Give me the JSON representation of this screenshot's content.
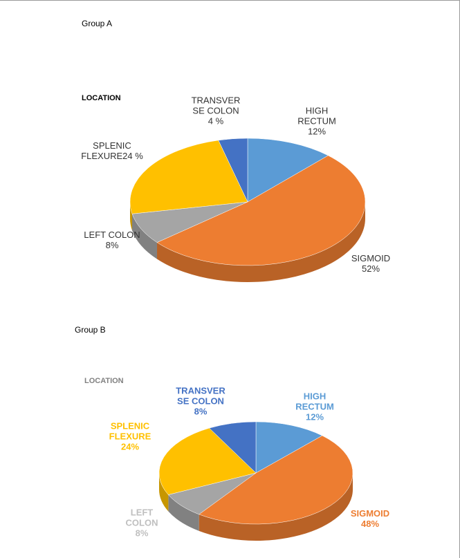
{
  "chart_data": [
    {
      "type": "pie",
      "group": "Group A",
      "title": "LOCATION",
      "categories": [
        "HIGH RECTUM",
        "SIGMOID",
        "LEFT COLON",
        "SPLENIC FLEXURE",
        "TRANSVER SE COLON"
      ],
      "values": [
        12,
        52,
        8,
        24,
        4
      ],
      "value_labels": [
        "12%",
        "52%",
        "8%",
        "24 %",
        "4 %"
      ],
      "colors": [
        "#5b9bd5",
        "#ed7d31",
        "#a5a5a5",
        "#ffc000",
        "#4472c4"
      ]
    },
    {
      "type": "pie",
      "group": "Group B",
      "title": "LOCATION",
      "categories": [
        "HIGH RECTUM",
        "SIGMOID",
        "LEFT COLON",
        "SPLENIC FLEXURE",
        "TRANSVER SE COLON"
      ],
      "values": [
        12,
        48,
        8,
        24,
        8
      ],
      "value_labels": [
        "12%",
        "48%",
        "8%",
        "24%",
        "8%"
      ],
      "colors": [
        "#5b9bd5",
        "#ed7d31",
        "#a5a5a5",
        "#ffc000",
        "#4472c4"
      ]
    }
  ]
}
